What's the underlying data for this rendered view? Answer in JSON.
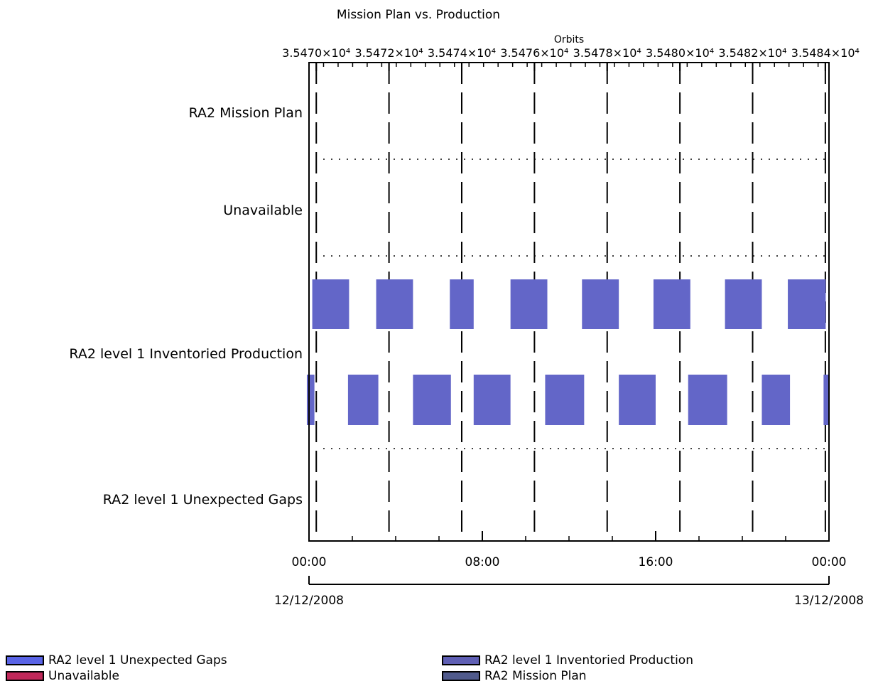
{
  "chart_data": {
    "type": "gantt",
    "title": "Mission Plan vs. Production",
    "top_axis": {
      "label": "Orbits",
      "ticks": [
        "3.5470×10⁴",
        "3.5472×10⁴",
        "3.5474×10⁴",
        "3.5476×10⁴",
        "3.5478×10⁴",
        "3.5480×10⁴",
        "3.5482×10⁴",
        "3.5484×10⁴"
      ],
      "range": [
        35469.8,
        35484.1
      ],
      "tick_values": [
        35470,
        35472,
        35474,
        35476,
        35478,
        35480,
        35482,
        35484
      ],
      "dashed_gridlines": true
    },
    "bottom_axis": {
      "ticks": [
        "00:00",
        "08:00",
        "16:00",
        "00:00"
      ],
      "tick_hours": [
        0,
        8,
        16,
        24
      ],
      "range_hours": [
        0,
        24
      ],
      "dates": [
        "12/12/2008",
        "13/12/2008"
      ]
    },
    "rows": [
      "RA2 Mission Plan",
      "Unavailable",
      "RA2 level 1 Inventoried Production",
      "RA2 level 1 Unexpected Gaps"
    ],
    "bar_color": "#6366c8",
    "series": [
      {
        "name": "RA2 level 1 Inventoried Production",
        "upper_segments_hours": [
          [
            0.15,
            1.85
          ],
          [
            3.1,
            4.8
          ],
          [
            6.5,
            7.6
          ],
          [
            9.3,
            11.0
          ],
          [
            12.6,
            14.3
          ],
          [
            15.9,
            17.6
          ],
          [
            19.2,
            20.9
          ],
          [
            22.1,
            23.85
          ]
        ],
        "lower_segments_hours": [
          [
            -0.1,
            0.25
          ],
          [
            1.8,
            3.2
          ],
          [
            4.8,
            6.55
          ],
          [
            7.6,
            9.3
          ],
          [
            10.9,
            12.7
          ],
          [
            14.3,
            16.0
          ],
          [
            17.5,
            19.3
          ],
          [
            20.9,
            22.2
          ],
          [
            23.75,
            24.0
          ]
        ]
      }
    ],
    "legend": [
      {
        "label": "RA2 level 1 Unexpected Gaps",
        "color": "#5a64e6"
      },
      {
        "label": "Unavailable",
        "color": "#c0285a"
      },
      {
        "label": "RA2 level 1 Inventoried Production",
        "color": "#5f5fb4"
      },
      {
        "label": "RA2 Mission Plan",
        "color": "#505a8c"
      }
    ]
  }
}
